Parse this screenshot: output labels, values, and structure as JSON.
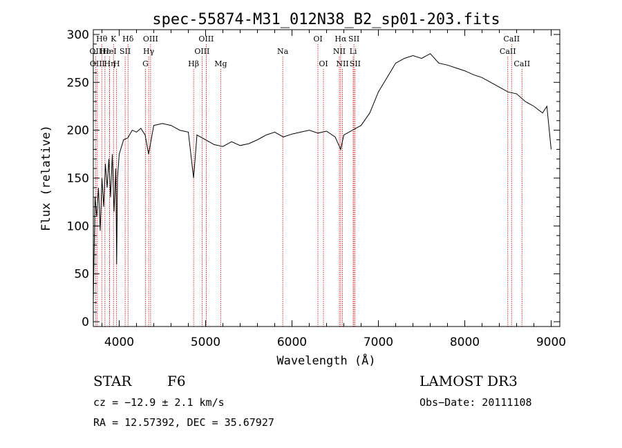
{
  "chart_data": {
    "type": "line",
    "title": "spec-55874-M31_012N38_B2_sp01-203.fits",
    "xlabel": "Wavelength (Å)",
    "ylabel": "Flux (relative)",
    "xlim": [
      3700,
      9100
    ],
    "ylim": [
      -5,
      305
    ],
    "xticks": [
      4000,
      5000,
      6000,
      7000,
      8000,
      9000
    ],
    "yticks": [
      0,
      50,
      100,
      150,
      200,
      250,
      300
    ],
    "series": [
      {
        "name": "spectrum",
        "x": [
          3700,
          3720,
          3740,
          3760,
          3780,
          3800,
          3820,
          3840,
          3860,
          3880,
          3900,
          3920,
          3940,
          3960,
          3970,
          3980,
          4000,
          4050,
          4100,
          4150,
          4200,
          4250,
          4300,
          4340,
          4400,
          4500,
          4600,
          4700,
          4800,
          4861,
          4900,
          5000,
          5100,
          5200,
          5300,
          5400,
          5500,
          5600,
          5700,
          5800,
          5900,
          6000,
          6100,
          6200,
          6300,
          6400,
          6500,
          6563,
          6600,
          6700,
          6800,
          6900,
          7000,
          7100,
          7200,
          7300,
          7400,
          7500,
          7600,
          7700,
          7800,
          7900,
          8000,
          8100,
          8200,
          8300,
          8400,
          8500,
          8600,
          8700,
          8800,
          8900,
          8950,
          9000
        ],
        "y": [
          20,
          130,
          110,
          140,
          95,
          150,
          120,
          165,
          140,
          170,
          130,
          175,
          115,
          160,
          60,
          150,
          175,
          190,
          192,
          200,
          198,
          202,
          195,
          175,
          205,
          207,
          205,
          200,
          198,
          150,
          195,
          190,
          185,
          183,
          188,
          184,
          186,
          190,
          195,
          198,
          193,
          196,
          198,
          200,
          197,
          199,
          193,
          180,
          195,
          200,
          205,
          218,
          240,
          255,
          270,
          275,
          278,
          275,
          280,
          270,
          268,
          265,
          262,
          258,
          255,
          250,
          245,
          240,
          238,
          230,
          225,
          218,
          225,
          180
        ]
      }
    ],
    "lines": [
      {
        "label": "Hθ",
        "wl": 3798,
        "row": 0
      },
      {
        "label": "OII",
        "wl": 3727,
        "row": 1
      },
      {
        "label": "OIII",
        "wl": 3747,
        "row": 2
      },
      {
        "label": "Hε",
        "wl": 3835,
        "row": 1
      },
      {
        "label": "Hη",
        "wl": 3889,
        "row": 2
      },
      {
        "label": "K",
        "wl": 3934,
        "row": 0
      },
      {
        "label": "HeI",
        "wl": 3888,
        "row": 1
      },
      {
        "label": "SII",
        "wl": 4069,
        "row": 1
      },
      {
        "label": "H",
        "wl": 3969,
        "row": 2
      },
      {
        "label": "Hδ",
        "wl": 4102,
        "row": 0
      },
      {
        "label": "OIII",
        "wl": 4363,
        "row": 0
      },
      {
        "label": "Hγ",
        "wl": 4341,
        "row": 1
      },
      {
        "label": "G",
        "wl": 4304,
        "row": 2
      },
      {
        "label": "Hβ",
        "wl": 4861,
        "row": 2
      },
      {
        "label": "OIII",
        "wl": 5007,
        "row": 0
      },
      {
        "label": "OIII",
        "wl": 4959,
        "row": 1
      },
      {
        "label": "Mg",
        "wl": 5175,
        "row": 2
      },
      {
        "label": "Na",
        "wl": 5893,
        "row": 1
      },
      {
        "label": "OI",
        "wl": 6300,
        "row": 0
      },
      {
        "label": "OI",
        "wl": 6364,
        "row": 2
      },
      {
        "label": "Hα",
        "wl": 6563,
        "row": 0
      },
      {
        "label": "NII",
        "wl": 6548,
        "row": 1
      },
      {
        "label": "NII",
        "wl": 6584,
        "row": 2
      },
      {
        "label": "SII",
        "wl": 6717,
        "row": 0
      },
      {
        "label": "Li",
        "wl": 6708,
        "row": 1
      },
      {
        "label": "SII",
        "wl": 6731,
        "row": 2
      },
      {
        "label": "CaII",
        "wl": 8542,
        "row": 0
      },
      {
        "label": "CaII",
        "wl": 8498,
        "row": 1
      },
      {
        "label": "CaII",
        "wl": 8662,
        "row": 2
      }
    ]
  },
  "info": {
    "type_label": "STAR",
    "subclass": "F6",
    "survey": "LAMOST DR3",
    "cz": "cz = −12.9 ± 2.1 km/s",
    "obs_date": "Obs−Date: 20111108",
    "coords": "RA =  12.57392, DEC =  35.67927"
  },
  "colors": {
    "spectrum": "#000000",
    "line_marker": "#cc0000"
  }
}
